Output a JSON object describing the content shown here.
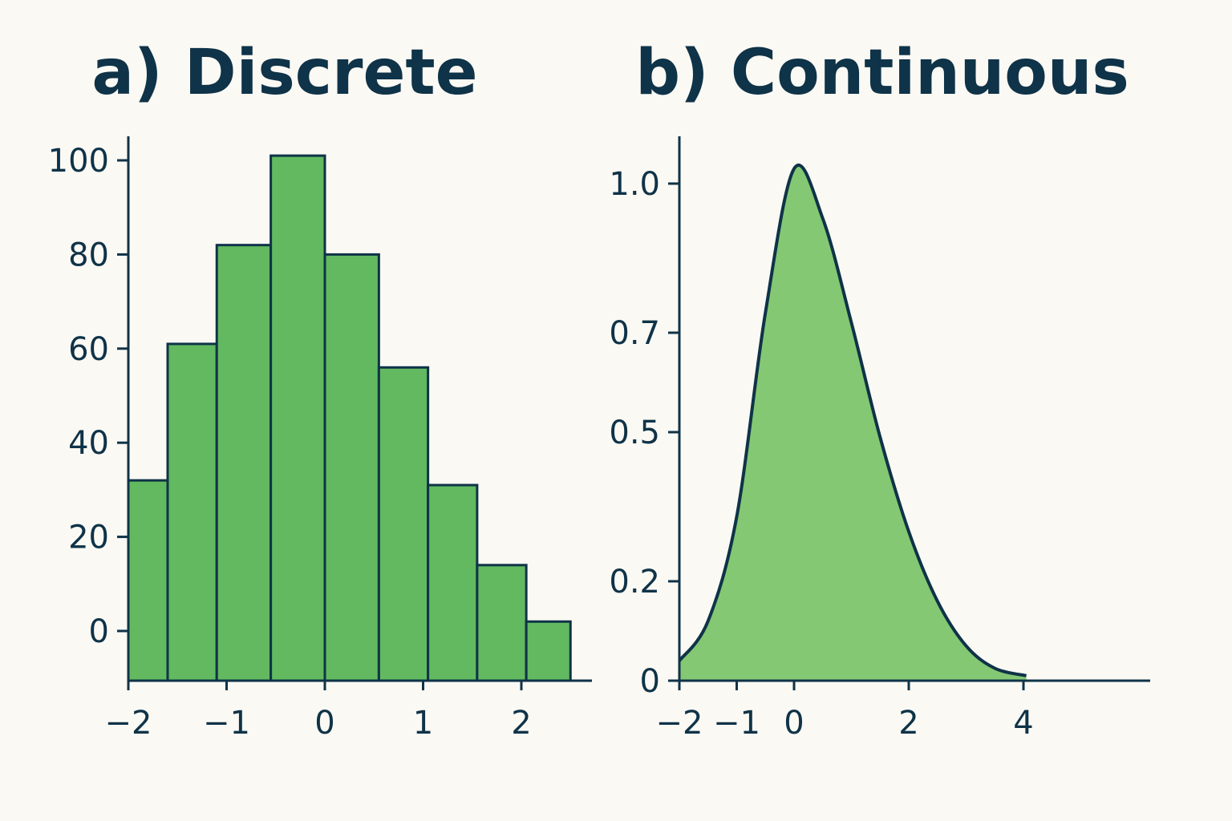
{
  "colors": {
    "ink": "#0f3348",
    "bar_fill": "#62b95f",
    "area_fill": "#84c873",
    "background": "#fbf9f4"
  },
  "chart_data": [
    {
      "type": "bar",
      "title": "a) Discrete",
      "xlabel": "",
      "ylabel": "",
      "bins": [
        {
          "x0": -2.0,
          "x1": -1.6,
          "value": 32
        },
        {
          "x0": -1.6,
          "x1": -1.1,
          "value": 61
        },
        {
          "x0": -1.1,
          "x1": -0.55,
          "value": 82
        },
        {
          "x0": -0.55,
          "x1": 0.0,
          "value": 101
        },
        {
          "x0": 0.0,
          "x1": 0.55,
          "value": 80
        },
        {
          "x0": 0.55,
          "x1": 1.05,
          "value": 56
        },
        {
          "x0": 1.05,
          "x1": 1.55,
          "value": 31
        },
        {
          "x0": 1.55,
          "x1": 2.05,
          "value": 14
        },
        {
          "x0": 2.05,
          "x1": 2.5,
          "value": 2
        }
      ],
      "xlim": [
        -2,
        2.7
      ],
      "ylim": [
        -11,
        106
      ],
      "x_ticks": [
        {
          "value": -2,
          "label": "−2"
        },
        {
          "value": -1,
          "label": "−1"
        },
        {
          "value": 0,
          "label": "0"
        },
        {
          "value": 1,
          "label": "1"
        },
        {
          "value": 2,
          "label": "2"
        }
      ],
      "y_ticks": [
        {
          "value": 0,
          "label": "0"
        },
        {
          "value": 20,
          "label": "20"
        },
        {
          "value": 40,
          "label": "40"
        },
        {
          "value": 60,
          "label": "60"
        },
        {
          "value": 80,
          "label": "80"
        },
        {
          "value": 100,
          "label": "100"
        }
      ],
      "grid": false,
      "legend": "none"
    },
    {
      "type": "area",
      "title": "b) Continuous",
      "xlabel": "",
      "ylabel": "",
      "x": [
        -2.0,
        -1.5,
        -1.0,
        -0.5,
        0.0,
        0.5,
        1.0,
        1.5,
        2.0,
        2.5,
        3.0,
        3.5,
        4.05
      ],
      "y": [
        0.04,
        0.12,
        0.33,
        0.74,
        1.03,
        0.93,
        0.72,
        0.49,
        0.3,
        0.16,
        0.07,
        0.025,
        0.01
      ],
      "xlim": [
        -2,
        4.1
      ],
      "ylim": [
        0,
        1.08
      ],
      "x_ticks": [
        {
          "value": -2,
          "label": "−2"
        },
        {
          "value": -1,
          "label": "−1"
        },
        {
          "value": 0,
          "label": "0"
        },
        {
          "value": 2,
          "label": "2"
        },
        {
          "value": 4,
          "label": "4"
        }
      ],
      "y_ticks": [
        {
          "value": 0,
          "label": "0"
        },
        {
          "value": 0.2,
          "label": "0.2"
        },
        {
          "value": 0.5,
          "label": "0.5"
        },
        {
          "value": 0.7,
          "label": "0.7"
        },
        {
          "value": 1.0,
          "label": "1.0"
        }
      ],
      "grid": false,
      "legend": "none"
    }
  ]
}
